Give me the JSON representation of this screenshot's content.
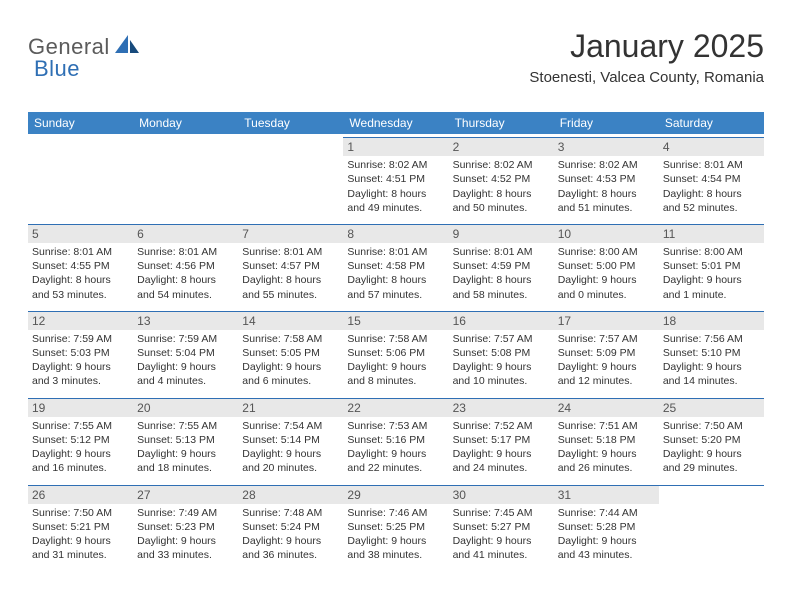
{
  "logo": {
    "general": "General",
    "blue": "Blue"
  },
  "title": "January 2025",
  "location": "Stoenesti, Valcea County, Romania",
  "colors": {
    "header_bg": "#3b82c4",
    "header_text": "#ffffff",
    "divider": "#2f6fb4",
    "daynum_bg": "#e8e8e8",
    "text": "#333333",
    "logo_gray": "#5b5b5b",
    "logo_blue": "#2f6fb4"
  },
  "day_names": [
    "Sunday",
    "Monday",
    "Tuesday",
    "Wednesday",
    "Thursday",
    "Friday",
    "Saturday"
  ],
  "weeks": [
    [
      {
        "n": "",
        "sr": "",
        "ss": "",
        "dl1": "",
        "dl2": ""
      },
      {
        "n": "",
        "sr": "",
        "ss": "",
        "dl1": "",
        "dl2": ""
      },
      {
        "n": "",
        "sr": "",
        "ss": "",
        "dl1": "",
        "dl2": ""
      },
      {
        "n": "1",
        "sr": "Sunrise: 8:02 AM",
        "ss": "Sunset: 4:51 PM",
        "dl1": "Daylight: 8 hours",
        "dl2": "and 49 minutes."
      },
      {
        "n": "2",
        "sr": "Sunrise: 8:02 AM",
        "ss": "Sunset: 4:52 PM",
        "dl1": "Daylight: 8 hours",
        "dl2": "and 50 minutes."
      },
      {
        "n": "3",
        "sr": "Sunrise: 8:02 AM",
        "ss": "Sunset: 4:53 PM",
        "dl1": "Daylight: 8 hours",
        "dl2": "and 51 minutes."
      },
      {
        "n": "4",
        "sr": "Sunrise: 8:01 AM",
        "ss": "Sunset: 4:54 PM",
        "dl1": "Daylight: 8 hours",
        "dl2": "and 52 minutes."
      }
    ],
    [
      {
        "n": "5",
        "sr": "Sunrise: 8:01 AM",
        "ss": "Sunset: 4:55 PM",
        "dl1": "Daylight: 8 hours",
        "dl2": "and 53 minutes."
      },
      {
        "n": "6",
        "sr": "Sunrise: 8:01 AM",
        "ss": "Sunset: 4:56 PM",
        "dl1": "Daylight: 8 hours",
        "dl2": "and 54 minutes."
      },
      {
        "n": "7",
        "sr": "Sunrise: 8:01 AM",
        "ss": "Sunset: 4:57 PM",
        "dl1": "Daylight: 8 hours",
        "dl2": "and 55 minutes."
      },
      {
        "n": "8",
        "sr": "Sunrise: 8:01 AM",
        "ss": "Sunset: 4:58 PM",
        "dl1": "Daylight: 8 hours",
        "dl2": "and 57 minutes."
      },
      {
        "n": "9",
        "sr": "Sunrise: 8:01 AM",
        "ss": "Sunset: 4:59 PM",
        "dl1": "Daylight: 8 hours",
        "dl2": "and 58 minutes."
      },
      {
        "n": "10",
        "sr": "Sunrise: 8:00 AM",
        "ss": "Sunset: 5:00 PM",
        "dl1": "Daylight: 9 hours",
        "dl2": "and 0 minutes."
      },
      {
        "n": "11",
        "sr": "Sunrise: 8:00 AM",
        "ss": "Sunset: 5:01 PM",
        "dl1": "Daylight: 9 hours",
        "dl2": "and 1 minute."
      }
    ],
    [
      {
        "n": "12",
        "sr": "Sunrise: 7:59 AM",
        "ss": "Sunset: 5:03 PM",
        "dl1": "Daylight: 9 hours",
        "dl2": "and 3 minutes."
      },
      {
        "n": "13",
        "sr": "Sunrise: 7:59 AM",
        "ss": "Sunset: 5:04 PM",
        "dl1": "Daylight: 9 hours",
        "dl2": "and 4 minutes."
      },
      {
        "n": "14",
        "sr": "Sunrise: 7:58 AM",
        "ss": "Sunset: 5:05 PM",
        "dl1": "Daylight: 9 hours",
        "dl2": "and 6 minutes."
      },
      {
        "n": "15",
        "sr": "Sunrise: 7:58 AM",
        "ss": "Sunset: 5:06 PM",
        "dl1": "Daylight: 9 hours",
        "dl2": "and 8 minutes."
      },
      {
        "n": "16",
        "sr": "Sunrise: 7:57 AM",
        "ss": "Sunset: 5:08 PM",
        "dl1": "Daylight: 9 hours",
        "dl2": "and 10 minutes."
      },
      {
        "n": "17",
        "sr": "Sunrise: 7:57 AM",
        "ss": "Sunset: 5:09 PM",
        "dl1": "Daylight: 9 hours",
        "dl2": "and 12 minutes."
      },
      {
        "n": "18",
        "sr": "Sunrise: 7:56 AM",
        "ss": "Sunset: 5:10 PM",
        "dl1": "Daylight: 9 hours",
        "dl2": "and 14 minutes."
      }
    ],
    [
      {
        "n": "19",
        "sr": "Sunrise: 7:55 AM",
        "ss": "Sunset: 5:12 PM",
        "dl1": "Daylight: 9 hours",
        "dl2": "and 16 minutes."
      },
      {
        "n": "20",
        "sr": "Sunrise: 7:55 AM",
        "ss": "Sunset: 5:13 PM",
        "dl1": "Daylight: 9 hours",
        "dl2": "and 18 minutes."
      },
      {
        "n": "21",
        "sr": "Sunrise: 7:54 AM",
        "ss": "Sunset: 5:14 PM",
        "dl1": "Daylight: 9 hours",
        "dl2": "and 20 minutes."
      },
      {
        "n": "22",
        "sr": "Sunrise: 7:53 AM",
        "ss": "Sunset: 5:16 PM",
        "dl1": "Daylight: 9 hours",
        "dl2": "and 22 minutes."
      },
      {
        "n": "23",
        "sr": "Sunrise: 7:52 AM",
        "ss": "Sunset: 5:17 PM",
        "dl1": "Daylight: 9 hours",
        "dl2": "and 24 minutes."
      },
      {
        "n": "24",
        "sr": "Sunrise: 7:51 AM",
        "ss": "Sunset: 5:18 PM",
        "dl1": "Daylight: 9 hours",
        "dl2": "and 26 minutes."
      },
      {
        "n": "25",
        "sr": "Sunrise: 7:50 AM",
        "ss": "Sunset: 5:20 PM",
        "dl1": "Daylight: 9 hours",
        "dl2": "and 29 minutes."
      }
    ],
    [
      {
        "n": "26",
        "sr": "Sunrise: 7:50 AM",
        "ss": "Sunset: 5:21 PM",
        "dl1": "Daylight: 9 hours",
        "dl2": "and 31 minutes."
      },
      {
        "n": "27",
        "sr": "Sunrise: 7:49 AM",
        "ss": "Sunset: 5:23 PM",
        "dl1": "Daylight: 9 hours",
        "dl2": "and 33 minutes."
      },
      {
        "n": "28",
        "sr": "Sunrise: 7:48 AM",
        "ss": "Sunset: 5:24 PM",
        "dl1": "Daylight: 9 hours",
        "dl2": "and 36 minutes."
      },
      {
        "n": "29",
        "sr": "Sunrise: 7:46 AM",
        "ss": "Sunset: 5:25 PM",
        "dl1": "Daylight: 9 hours",
        "dl2": "and 38 minutes."
      },
      {
        "n": "30",
        "sr": "Sunrise: 7:45 AM",
        "ss": "Sunset: 5:27 PM",
        "dl1": "Daylight: 9 hours",
        "dl2": "and 41 minutes."
      },
      {
        "n": "31",
        "sr": "Sunrise: 7:44 AM",
        "ss": "Sunset: 5:28 PM",
        "dl1": "Daylight: 9 hours",
        "dl2": "and 43 minutes."
      },
      {
        "n": "",
        "sr": "",
        "ss": "",
        "dl1": "",
        "dl2": ""
      }
    ]
  ]
}
